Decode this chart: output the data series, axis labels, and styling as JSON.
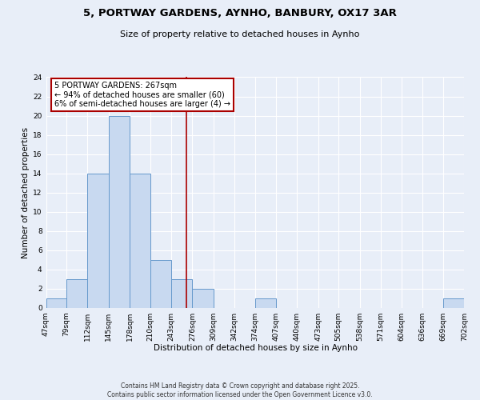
{
  "title": "5, PORTWAY GARDENS, AYNHO, BANBURY, OX17 3AR",
  "subtitle": "Size of property relative to detached houses in Aynho",
  "xlabel": "Distribution of detached houses by size in Aynho",
  "ylabel": "Number of detached properties",
  "bin_edges": [
    47,
    79,
    112,
    145,
    178,
    210,
    243,
    276,
    309,
    342,
    374,
    407,
    440,
    473,
    505,
    538,
    571,
    604,
    636,
    669,
    702
  ],
  "bin_counts": [
    1,
    3,
    14,
    20,
    14,
    5,
    3,
    2,
    0,
    0,
    1,
    0,
    0,
    0,
    0,
    0,
    0,
    0,
    0,
    1
  ],
  "bar_color": "#c8d9f0",
  "bar_edge_color": "#6699cc",
  "vline_x": 267,
  "vline_color": "#aa0000",
  "ylim": [
    0,
    24
  ],
  "yticks": [
    0,
    2,
    4,
    6,
    8,
    10,
    12,
    14,
    16,
    18,
    20,
    22,
    24
  ],
  "annotation_title": "5 PORTWAY GARDENS: 267sqm",
  "annotation_line1": "← 94% of detached houses are smaller (60)",
  "annotation_line2": "6% of semi-detached houses are larger (4) →",
  "annotation_box_color": "#ffffff",
  "annotation_box_edge": "#aa0000",
  "tick_labels": [
    "47sqm",
    "79sqm",
    "112sqm",
    "145sqm",
    "178sqm",
    "210sqm",
    "243sqm",
    "276sqm",
    "309sqm",
    "342sqm",
    "374sqm",
    "407sqm",
    "440sqm",
    "473sqm",
    "505sqm",
    "538sqm",
    "571sqm",
    "604sqm",
    "636sqm",
    "669sqm",
    "702sqm"
  ],
  "footer_line1": "Contains HM Land Registry data © Crown copyright and database right 2025.",
  "footer_line2": "Contains public sector information licensed under the Open Government Licence v3.0.",
  "bg_color": "#e8eef8",
  "grid_color": "#ffffff",
  "title_fontsize": 9.5,
  "subtitle_fontsize": 8,
  "axis_label_fontsize": 7.5,
  "tick_fontsize": 6.5,
  "annotation_fontsize": 7,
  "footer_fontsize": 5.5
}
